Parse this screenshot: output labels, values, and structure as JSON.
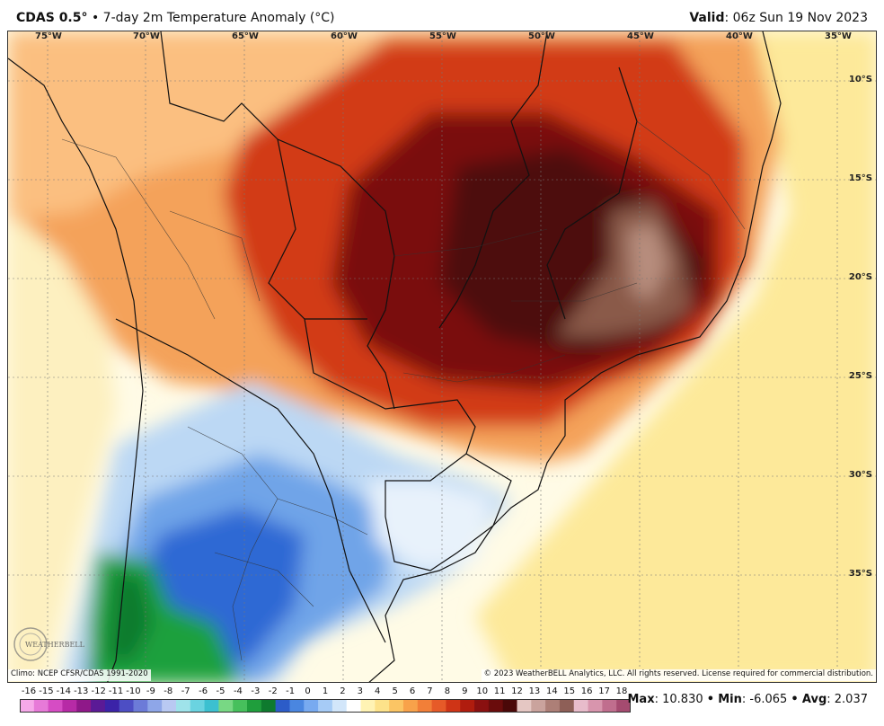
{
  "header": {
    "product": "CDAS 0.5",
    "degree_sign": "°",
    "separator": "•",
    "field": "7-day 2m Temperature Anomaly (°C)",
    "valid_label": "Valid",
    "valid_time": ": 06z Sun 19 Nov 2023"
  },
  "map": {
    "region": "South America (Brazil, Argentina, Paraguay, Uruguay)",
    "longitude_labels": [
      "75°W",
      "70°W",
      "65°W",
      "60°W",
      "55°W",
      "50°W",
      "45°W",
      "40°W",
      "35°W"
    ],
    "latitude_labels": [
      "10°S",
      "15°S",
      "20°S",
      "25°S",
      "30°S",
      "35°S"
    ],
    "climo_note": "Climo: NCEP CFSR/CDAS 1991-2020",
    "copyright": "© 2023 WeatherBELL Analytics, LLC. All rights reserved. License required for commercial distribution.",
    "logo_text": "WEATHERBELL",
    "colors": {
      "hot_core": "#5a0c0c",
      "hot": "#c0260c",
      "warm": "#f08a3c",
      "mild": "#fde99a",
      "cool": "#a9cdf2",
      "cold": "#2d69d4",
      "very_cold": "#1fa03c"
    }
  },
  "colorbar": {
    "ticks": [
      "-16",
      "-15",
      "-14",
      "-13",
      "-12",
      "-11",
      "-10",
      "-9",
      "-8",
      "-7",
      "-6",
      "-5",
      "-4",
      "-3",
      "-2",
      "-1",
      "0",
      "1",
      "2",
      "3",
      "4",
      "5",
      "6",
      "7",
      "8",
      "9",
      "10",
      "11",
      "12",
      "13",
      "14",
      "15",
      "16",
      "17",
      "18"
    ],
    "colors": [
      "#f6a9e9",
      "#e77ad8",
      "#d64cc4",
      "#b72aa6",
      "#8f1889",
      "#5b1a96",
      "#3b23a8",
      "#4d4ec4",
      "#6c7bd8",
      "#8ea6e8",
      "#b9c9f2",
      "#9fe3ea",
      "#6ad3e0",
      "#3cc0d0",
      "#78d884",
      "#46c05c",
      "#1f9e3c",
      "#0e7a2e",
      "#2c5cc8",
      "#4a86e0",
      "#78aaf0",
      "#a6cbf6",
      "#d2e6fa",
      "#ffffff",
      "#fff3b4",
      "#fde28a",
      "#fbc564",
      "#f8a24a",
      "#f27f38",
      "#e65a28",
      "#cf3416",
      "#b01c0e",
      "#8a1010",
      "#6a0c0c",
      "#4a0808",
      "#e5c7c3",
      "#caa39d",
      "#ad7f77",
      "#8e5f57",
      "#e8bccb",
      "#d895ad",
      "#c06e8e",
      "#a54b70"
    ]
  },
  "stats": {
    "max_label": "Max",
    "max_value": ": 10.830",
    "sep": "•",
    "min_label": "Min",
    "min_value": ": -6.065",
    "avg_label": "Avg",
    "avg_value": ": 2.037"
  }
}
